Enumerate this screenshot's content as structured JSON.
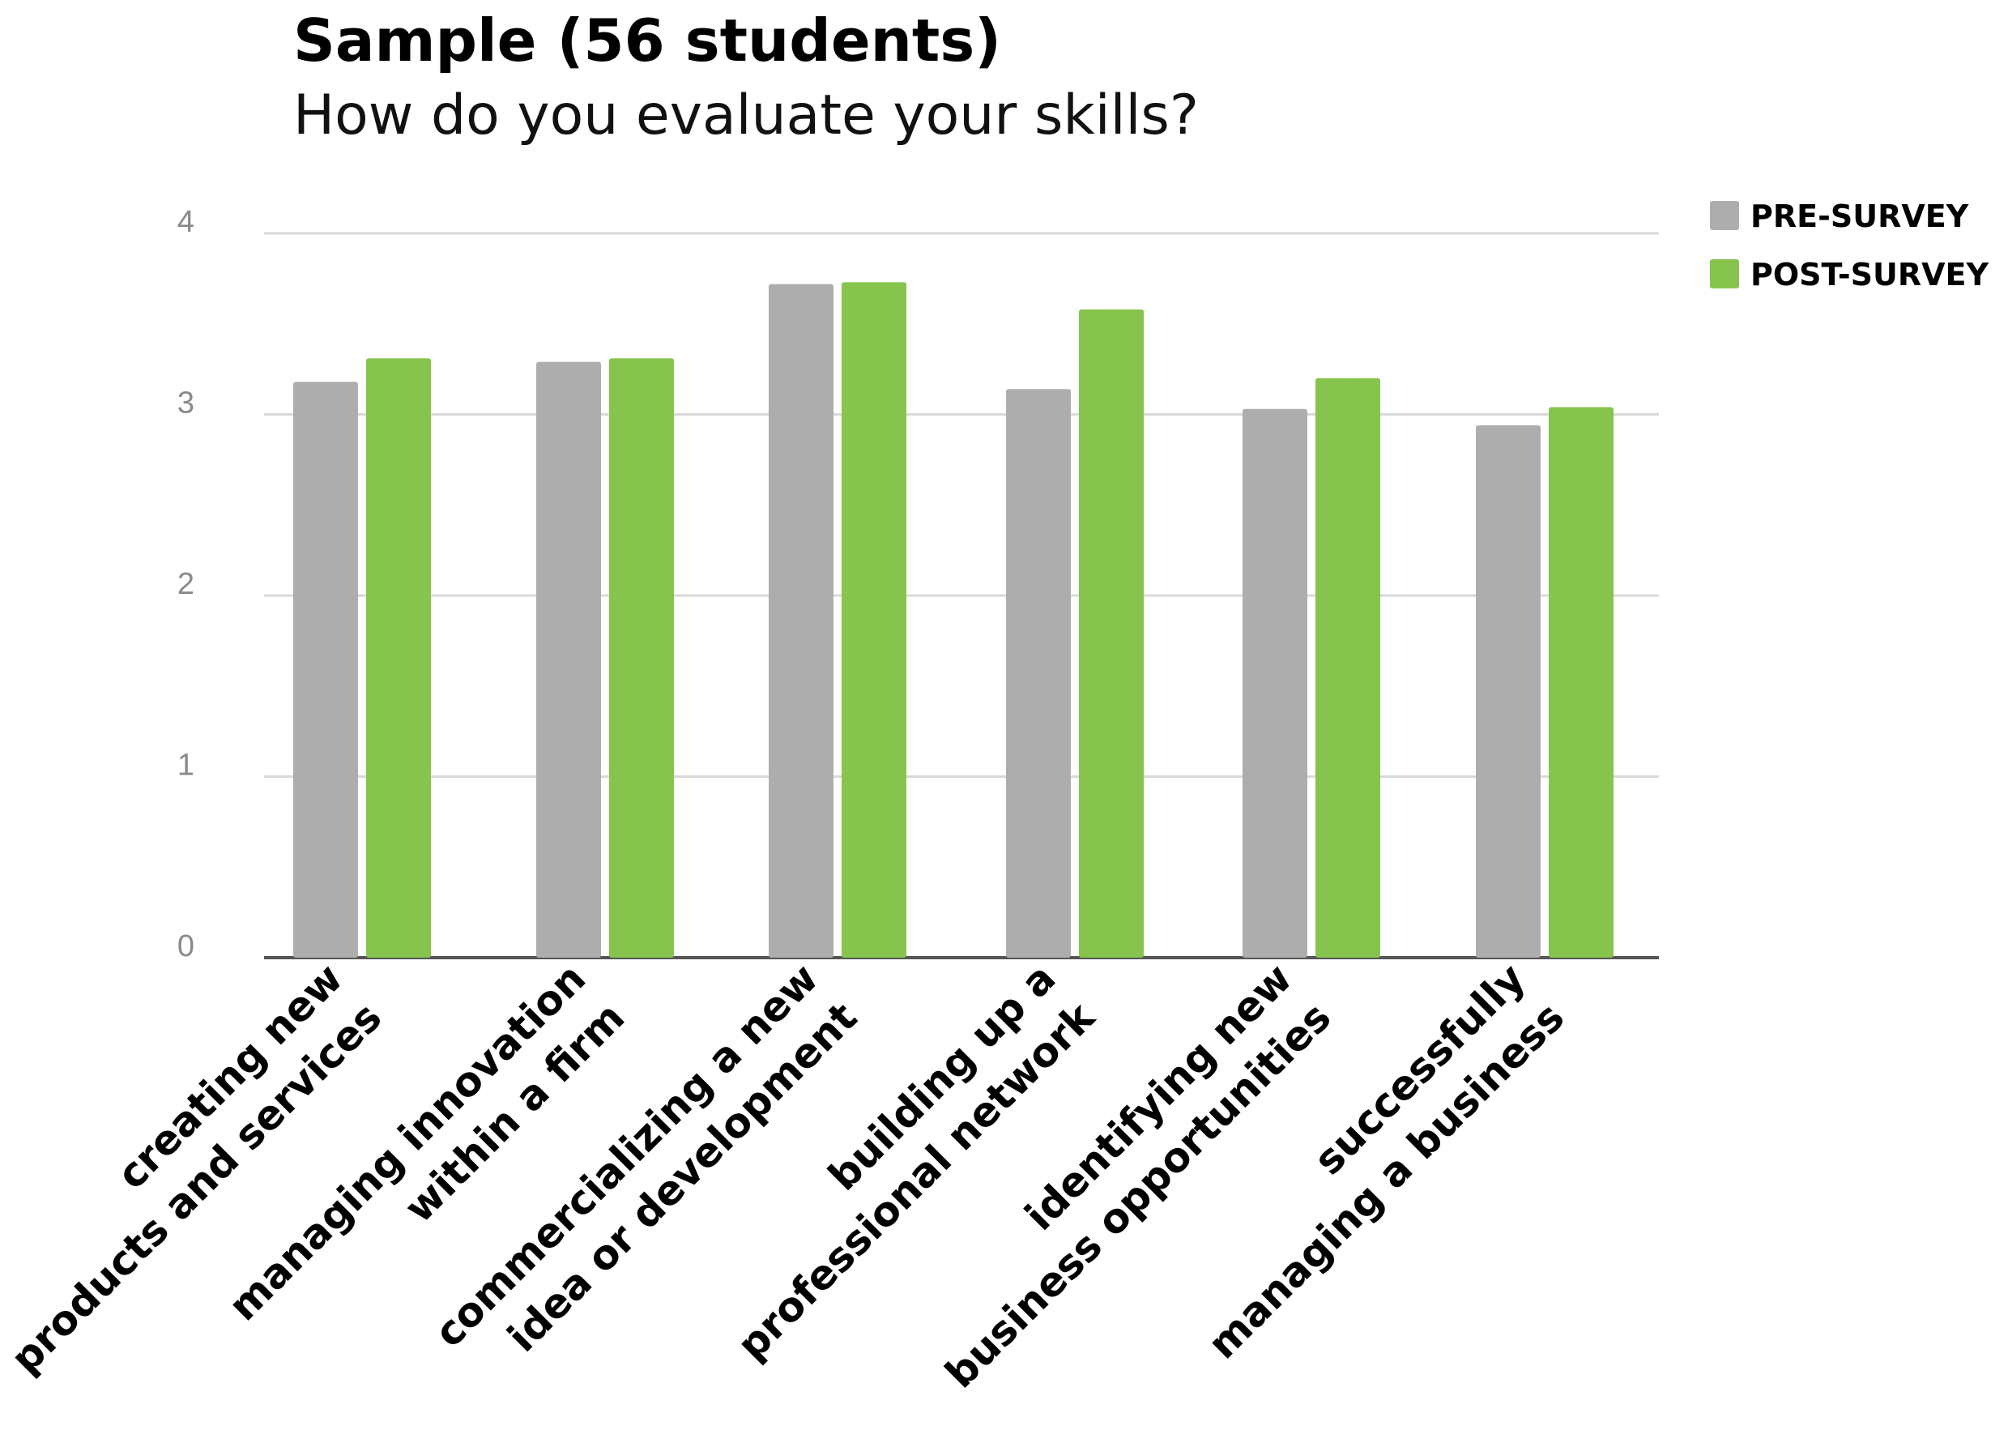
{
  "chart_data": {
    "type": "bar",
    "title": "Sample (56 students)",
    "subtitle": "How do you evaluate your skills?",
    "xlabel": "",
    "ylabel": "",
    "ylim": [
      0,
      4
    ],
    "yticks": [
      "0",
      "1",
      "2",
      "3",
      "4"
    ],
    "grid": true,
    "legend_position": "top-right",
    "categories": [
      [
        "creating new",
        "products and services"
      ],
      [
        "managing innovation",
        "within a firm"
      ],
      [
        "commercializing a new",
        "idea or development"
      ],
      [
        "building up a",
        "professional network"
      ],
      [
        "identifying new",
        "business  opportunities"
      ],
      [
        "successfully",
        "managing a business"
      ]
    ],
    "series": [
      {
        "name": "PRE-SURVEY",
        "color": "#adadad",
        "values": [
          3.18,
          3.29,
          3.72,
          3.14,
          3.03,
          2.94
        ]
      },
      {
        "name": "POST-SURVEY",
        "color": "#86c44e",
        "values": [
          3.31,
          3.31,
          3.73,
          3.58,
          3.2,
          3.04
        ]
      }
    ]
  }
}
